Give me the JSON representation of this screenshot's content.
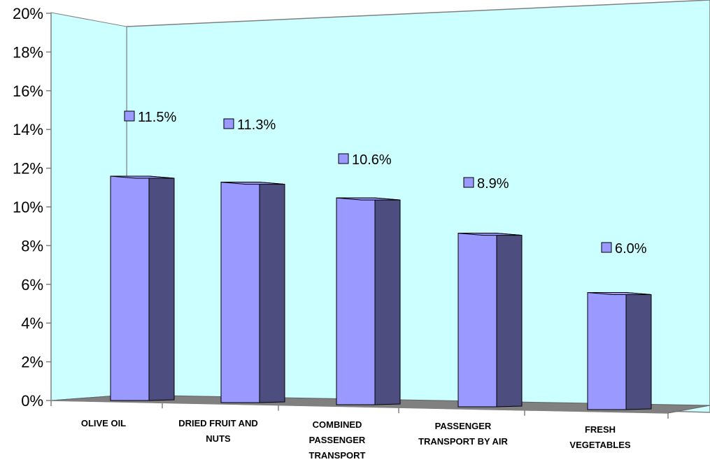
{
  "chart_data": {
    "type": "bar",
    "categories": [
      [
        "OLIVE OIL"
      ],
      [
        "DRIED FRUIT AND",
        "NUTS"
      ],
      [
        "COMBINED",
        "PASSENGER",
        "TRANSPORT"
      ],
      [
        "PASSENGER",
        "TRANSPORT BY AIR"
      ],
      [
        "FRESH",
        "VEGETABLES"
      ]
    ],
    "values": [
      11.5,
      11.3,
      10.6,
      8.9,
      6.0
    ],
    "data_labels": [
      "11.5%",
      "11.3%",
      "10.6%",
      "8.9%",
      "6.0%"
    ],
    "y_ticks": [
      "0%",
      "2%",
      "4%",
      "6%",
      "8%",
      "10%",
      "12%",
      "14%",
      "16%",
      "18%",
      "20%"
    ],
    "ylim": [
      0,
      20
    ],
    "title": "",
    "xlabel": "",
    "ylabel": "",
    "grid": false,
    "legend": "none",
    "colors": {
      "bar_front": "#9999ff",
      "bar_side": "#4d4d80",
      "wall": "#ccffff",
      "floor": "#808080",
      "label_marker": "#9999ff"
    }
  }
}
